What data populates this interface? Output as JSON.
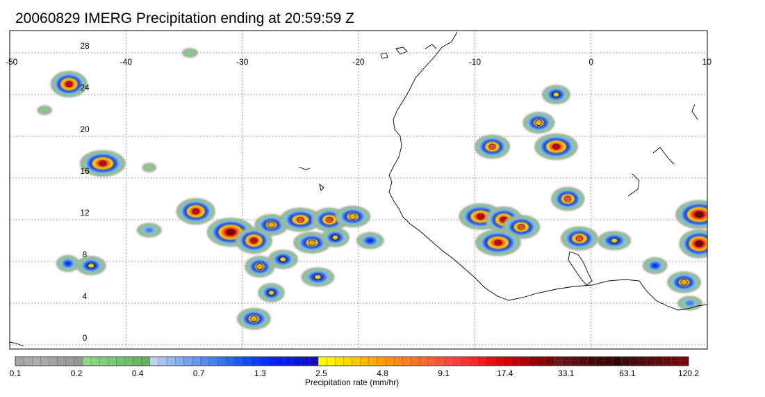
{
  "title": "20060829 IMERG Precipitation ending at 20:59:59 Z",
  "chart_data": {
    "type": "heatmap",
    "title": "20060829 IMERG Precipitation ending at 20:59:59 Z",
    "xlabel": "",
    "ylabel": "",
    "xlim": [
      -50,
      10
    ],
    "ylim": [
      -1,
      31
    ],
    "x_ticks": [
      {
        "value": -50,
        "label": "-50"
      },
      {
        "value": -40,
        "label": "-40"
      },
      {
        "value": -30,
        "label": "-30"
      },
      {
        "value": -20,
        "label": "-20"
      },
      {
        "value": -10,
        "label": "-10"
      },
      {
        "value": 0,
        "label": "0"
      },
      {
        "value": 10,
        "label": "10"
      }
    ],
    "y_ticks": [
      {
        "value": 28,
        "label": "28"
      },
      {
        "value": 24,
        "label": "24"
      },
      {
        "value": 20,
        "label": "20"
      },
      {
        "value": 16,
        "label": "16"
      },
      {
        "value": 12,
        "label": "12"
      },
      {
        "value": 8,
        "label": "8"
      },
      {
        "value": 4,
        "label": "4"
      },
      {
        "value": 0,
        "label": "0"
      }
    ],
    "grid": "dotted",
    "colorbar": {
      "title": "Precipitation rate (mm/hr)",
      "labels": [
        "0.1",
        "0.2",
        "0.4",
        "0.7",
        "1.3",
        "2.5",
        "4.8",
        "9.1",
        "17.4",
        "33.1",
        "63.1",
        "120.2"
      ],
      "colors": [
        "#a6a6a6",
        "#a9a9a9",
        "#adadad",
        "#a8a8a8",
        "#a3a3a3",
        "#9f9f9f",
        "#9a9a9a",
        "#969696",
        "#8bdb86",
        "#85d680",
        "#7fd07a",
        "#79ca74",
        "#73c46e",
        "#6dbf69",
        "#67b963",
        "#62b35e",
        "#bfd0f5",
        "#aac4f2",
        "#97b9f0",
        "#85aef0",
        "#75a2ef",
        "#6597ef",
        "#558cef",
        "#4780ef",
        "#3774ee",
        "#2a68ec",
        "#1f5ce8",
        "#1150e4",
        "#0b3ff0",
        "#0632f6",
        "#0826f0",
        "#0a1cea",
        "#071ee0",
        "#0a18d2",
        "#0d14c4",
        "#1010b6",
        "#ffff00",
        "#fff200",
        "#ffe400",
        "#ffd600",
        "#ffc800",
        "#ffba00",
        "#ffac00",
        "#ff9e00",
        "#ff9410",
        "#ff8a18",
        "#ff7f1f",
        "#ff7527",
        "#ff6a2f",
        "#ff6035",
        "#ff553a",
        "#ff4a3f",
        "#ff3f3f",
        "#ff3333",
        "#ff2727",
        "#f71c1c",
        "#e81010",
        "#d80a0a",
        "#c80808",
        "#b80606",
        "#a80404",
        "#980303",
        "#880202",
        "#780101",
        "#6a1818",
        "#621414",
        "#5a1010",
        "#520c0c",
        "#4a0909",
        "#420606",
        "#3a0303",
        "#320000",
        "#3a0e0e",
        "#440e0e",
        "#4d0d0d",
        "#560c0c",
        "#600b0b",
        "#690a0a",
        "#720909",
        "#7b0808"
      ]
    },
    "precip_cells": [
      {
        "lon": -44.9,
        "lat": 25.0,
        "rate": 33.1
      },
      {
        "lon": -47.0,
        "lat": 22.5,
        "rate": 0.4
      },
      {
        "lon": -42.0,
        "lat": 17.4,
        "rate": 33.1
      },
      {
        "lon": -38.0,
        "lat": 17.0,
        "rate": 0.4
      },
      {
        "lon": -34.5,
        "lat": 28.0,
        "rate": 0.4
      },
      {
        "lon": -45.0,
        "lat": 7.8,
        "rate": 2.5
      },
      {
        "lon": -43.0,
        "lat": 7.6,
        "rate": 4.8
      },
      {
        "lon": -38.0,
        "lat": 11.0,
        "rate": 1.3
      },
      {
        "lon": -34.0,
        "lat": 12.8,
        "rate": 33.1
      },
      {
        "lon": -31.0,
        "lat": 10.8,
        "rate": 63.1
      },
      {
        "lon": -29.0,
        "lat": 10.0,
        "rate": 33.1
      },
      {
        "lon": -27.5,
        "lat": 11.5,
        "rate": 9.1
      },
      {
        "lon": -25.0,
        "lat": 12.0,
        "rate": 17.4
      },
      {
        "lon": -22.5,
        "lat": 12.0,
        "rate": 17.4
      },
      {
        "lon": -20.5,
        "lat": 12.3,
        "rate": 9.1
      },
      {
        "lon": -28.5,
        "lat": 7.5,
        "rate": 9.1
      },
      {
        "lon": -26.5,
        "lat": 8.2,
        "rate": 4.8
      },
      {
        "lon": -24.0,
        "lat": 9.8,
        "rate": 9.1
      },
      {
        "lon": -22.0,
        "lat": 10.3,
        "rate": 4.8
      },
      {
        "lon": -19.0,
        "lat": 10.0,
        "rate": 2.5
      },
      {
        "lon": -27.5,
        "lat": 5.0,
        "rate": 4.8
      },
      {
        "lon": -29.0,
        "lat": 2.5,
        "rate": 9.1
      },
      {
        "lon": -23.5,
        "lat": 6.5,
        "rate": 4.8
      },
      {
        "lon": -8.5,
        "lat": 19.0,
        "rate": 17.4
      },
      {
        "lon": -9.5,
        "lat": 12.3,
        "rate": 33.1
      },
      {
        "lon": -7.5,
        "lat": 12.0,
        "rate": 33.1
      },
      {
        "lon": -6.0,
        "lat": 11.3,
        "rate": 17.4
      },
      {
        "lon": -8.0,
        "lat": 9.8,
        "rate": 33.1
      },
      {
        "lon": -4.5,
        "lat": 21.3,
        "rate": 9.1
      },
      {
        "lon": -3.0,
        "lat": 19.0,
        "rate": 33.1
      },
      {
        "lon": -2.0,
        "lat": 14.0,
        "rate": 17.4
      },
      {
        "lon": -1.0,
        "lat": 10.2,
        "rate": 17.4
      },
      {
        "lon": 2.0,
        "lat": 10.0,
        "rate": 4.8
      },
      {
        "lon": 5.5,
        "lat": 7.6,
        "rate": 2.5
      },
      {
        "lon": 9.3,
        "lat": 12.5,
        "rate": 63.1
      },
      {
        "lon": 9.3,
        "lat": 9.7,
        "rate": 63.1
      },
      {
        "lon": 8.0,
        "lat": 6.0,
        "rate": 9.1
      },
      {
        "lon": 8.5,
        "lat": 4.0,
        "rate": 1.3
      },
      {
        "lon": -3.0,
        "lat": 24.0,
        "rate": 4.8
      }
    ]
  }
}
